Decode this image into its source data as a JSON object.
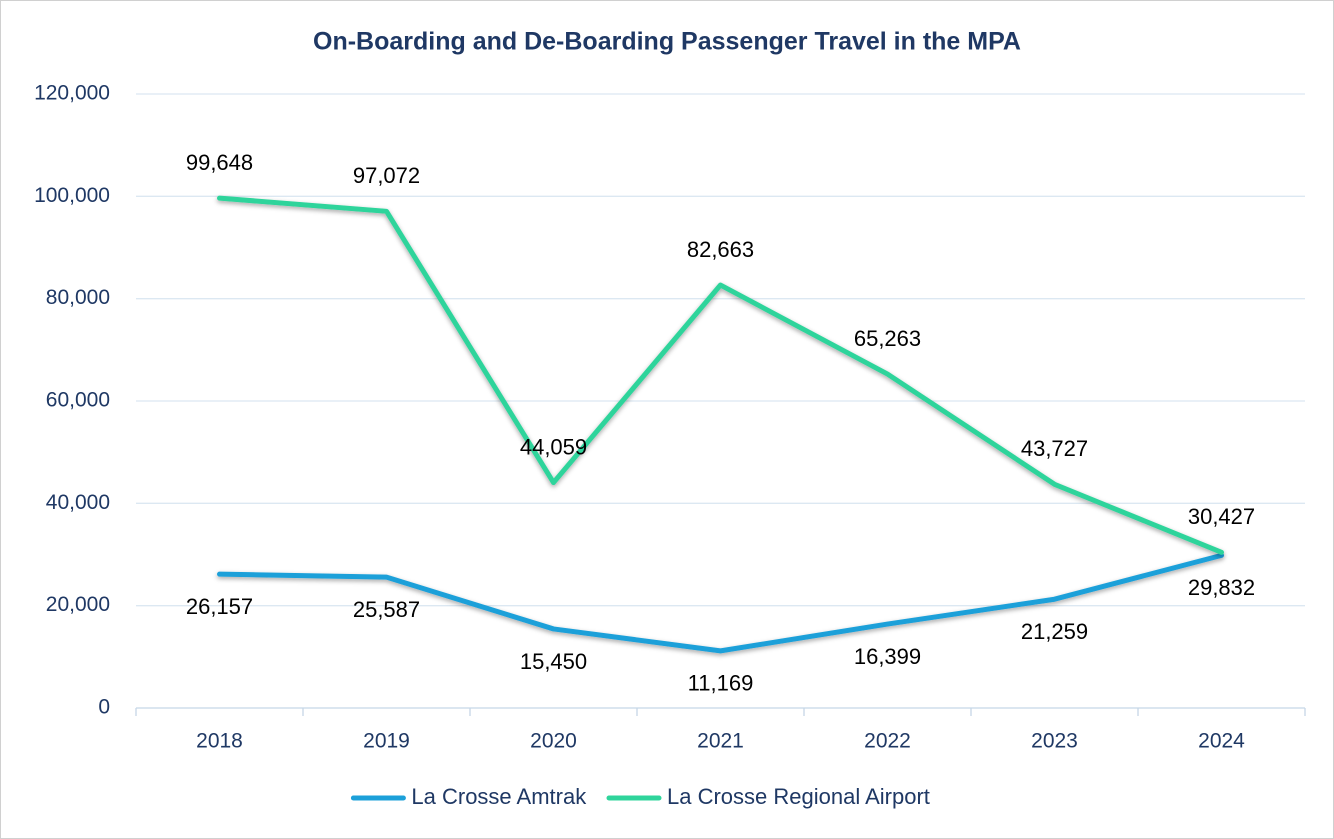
{
  "chart_data": {
    "type": "line",
    "title": "On-Boarding and De-Boarding Passenger Travel in the MPA",
    "categories": [
      "2018",
      "2019",
      "2020",
      "2021",
      "2022",
      "2023",
      "2024"
    ],
    "series": [
      {
        "name": "La Crosse Amtrak",
        "color": "#1ca0d9",
        "values": [
          26157,
          25587,
          15450,
          11169,
          16399,
          21259,
          29832
        ],
        "value_labels": [
          "26,157",
          "25,587",
          "15,450",
          "11,169",
          "16,399",
          "21,259",
          "29,832"
        ]
      },
      {
        "name": "La Crosse Regional Airport",
        "color": "#2fd49b",
        "values": [
          99648,
          97072,
          44059,
          82663,
          65263,
          43727,
          30427
        ],
        "value_labels": [
          "99,648",
          "97,072",
          "44,059",
          "82,663",
          "65,263",
          "43,727",
          "30,427"
        ]
      }
    ],
    "ylim": [
      0,
      120000
    ],
    "yticks": [
      0,
      {
        "value": 20000,
        "label": "20,000"
      },
      {
        "value": 40000,
        "label": "40,000"
      },
      {
        "value": 60000,
        "label": "60,000"
      },
      {
        "value": 80000,
        "label": "80,000"
      },
      {
        "value": 100000,
        "label": "100,000"
      },
      {
        "value": 120000,
        "label": "120,000"
      }
    ],
    "grid": true,
    "legend": "bottom"
  }
}
